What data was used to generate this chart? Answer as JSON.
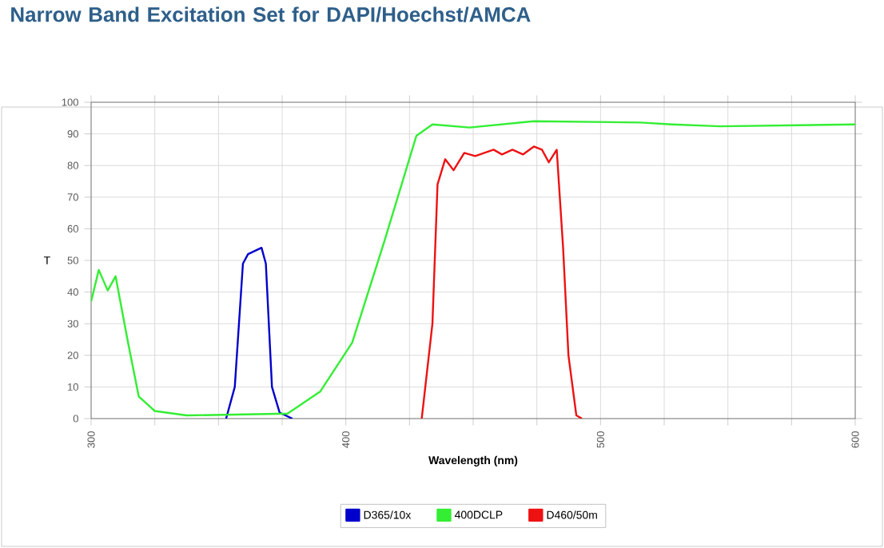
{
  "chart_data": {
    "type": "line",
    "title": "Narrow Band Excitation Set for DAPI/Hoechst/AMCA",
    "xlabel": "Wavelength (nm)",
    "ylabel": "T",
    "xlim": [
      300,
      600
    ],
    "ylim": [
      0,
      100
    ],
    "xticks": [
      300,
      {
        "value": 325,
        "label": null
      },
      {
        "value": 350,
        "label": null
      },
      {
        "value": 375,
        "label": null
      },
      400,
      {
        "value": 425,
        "label": null
      },
      {
        "value": 450,
        "label": null
      },
      {
        "value": 475,
        "label": null
      },
      500,
      {
        "value": 525,
        "label": null
      },
      {
        "value": 550,
        "label": null
      },
      {
        "value": 575,
        "label": null
      },
      600
    ],
    "yticks": [
      0,
      10,
      20,
      30,
      40,
      50,
      60,
      70,
      80,
      90,
      100
    ],
    "grid": true,
    "legend": "bottom",
    "marker": "none",
    "line_style": "solid",
    "series": [
      {
        "name": "D365/10x",
        "color": "#0000cc",
        "x": [
          353,
          356.4,
          359.6,
          361.6,
          366.9,
          368.6,
          371,
          374,
          379
        ],
        "values": [
          0,
          10,
          49,
          52,
          54,
          49,
          10,
          1.9,
          0
        ]
      },
      {
        "name": "400DCLP",
        "color": "#33ee33",
        "x": [
          300,
          303,
          306.5,
          309.6,
          314.5,
          318.7,
          325,
          337.5,
          373,
          377,
          390,
          402.5,
          415,
          427.7,
          434,
          448.6,
          473.8,
          515.7,
          528,
          547,
          600
        ],
        "values": [
          37,
          47,
          40.5,
          45,
          24,
          7,
          2.4,
          1,
          1.5,
          1.5,
          8.6,
          24,
          55.7,
          89.4,
          93,
          92,
          94,
          93.6,
          93,
          92.4,
          93
        ]
      },
      {
        "name": "D460/50m",
        "color": "#ee1111",
        "x": [
          429.8,
          434,
          436,
          439,
          442.3,
          446.5,
          450.8,
          458,
          461.3,
          465.4,
          469.6,
          473.8,
          477,
          479.7,
          482.8,
          485.3,
          487.4,
          490.5,
          492.7
        ],
        "values": [
          0,
          30,
          74,
          82,
          78.5,
          84,
          83,
          85,
          83.5,
          85,
          83.5,
          86,
          85,
          81,
          85,
          54,
          20,
          1,
          0
        ]
      }
    ]
  }
}
